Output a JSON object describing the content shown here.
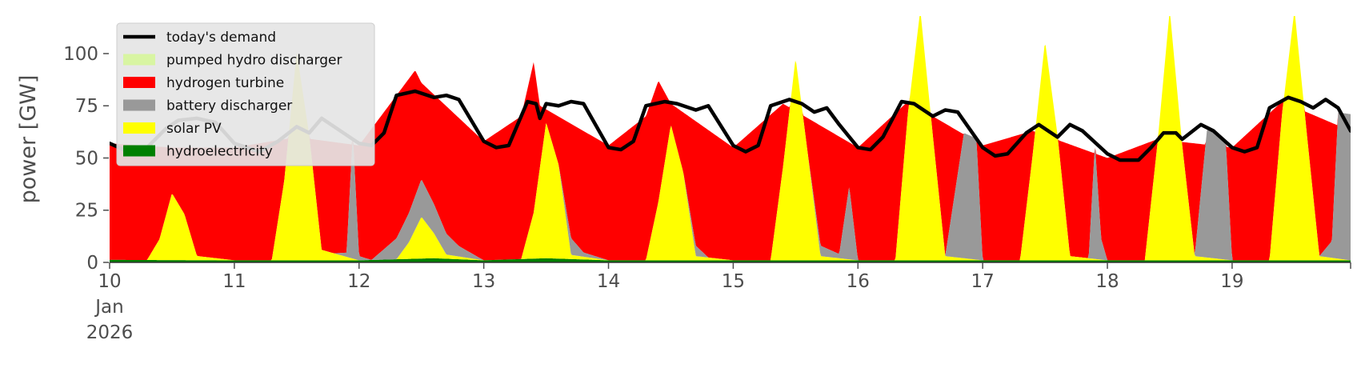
{
  "chart_data": {
    "type": "area",
    "xlabel": "",
    "ylabel": "power [GW]",
    "xlim": [
      10,
      19.95
    ],
    "ylim": [
      0,
      118
    ],
    "y_ticks": [
      0,
      25,
      50,
      75,
      100
    ],
    "x_ticks": [
      {
        "x": 10,
        "label": "10",
        "sublabels": [
          "Jan",
          "2026"
        ]
      },
      {
        "x": 11,
        "label": "11"
      },
      {
        "x": 12,
        "label": "12"
      },
      {
        "x": 13,
        "label": "13"
      },
      {
        "x": 14,
        "label": "14"
      },
      {
        "x": 15,
        "label": "15"
      },
      {
        "x": 16,
        "label": "16"
      },
      {
        "x": 17,
        "label": "17"
      },
      {
        "x": 18,
        "label": "18"
      },
      {
        "x": 19,
        "label": "19"
      }
    ],
    "grid": false,
    "legend_position": "upper-left",
    "series": [
      {
        "name": "hydroelectricity",
        "type": "area",
        "color": "#008000",
        "values": [
          [
            10,
            1.2
          ],
          [
            11,
            1.0
          ],
          [
            12,
            1.0
          ],
          [
            12.6,
            2.0
          ],
          [
            13,
            1.0
          ],
          [
            13.5,
            2.0
          ],
          [
            14,
            1.0
          ],
          [
            15,
            1.0
          ],
          [
            16,
            1.0
          ],
          [
            17,
            1.0
          ],
          [
            18,
            1.0
          ],
          [
            19,
            1.0
          ],
          [
            19.95,
            1.0
          ]
        ]
      },
      {
        "name": "solar PV",
        "type": "area",
        "color": "#ffff00",
        "values": [
          [
            10,
            0
          ],
          [
            10.3,
            0
          ],
          [
            10.4,
            10
          ],
          [
            10.5,
            32
          ],
          [
            10.6,
            22
          ],
          [
            10.7,
            2
          ],
          [
            11,
            0
          ],
          [
            11.3,
            0
          ],
          [
            11.4,
            38
          ],
          [
            11.5,
            100
          ],
          [
            11.6,
            60
          ],
          [
            11.7,
            5
          ],
          [
            12,
            0
          ],
          [
            12.3,
            0
          ],
          [
            12.4,
            8
          ],
          [
            12.5,
            20
          ],
          [
            12.6,
            12
          ],
          [
            12.7,
            2
          ],
          [
            13,
            0
          ],
          [
            13.3,
            0
          ],
          [
            13.4,
            22
          ],
          [
            13.5,
            65
          ],
          [
            13.6,
            45
          ],
          [
            13.7,
            2
          ],
          [
            14,
            0
          ],
          [
            14.3,
            0
          ],
          [
            14.4,
            28
          ],
          [
            14.5,
            65
          ],
          [
            14.6,
            42
          ],
          [
            14.7,
            2
          ],
          [
            15,
            0
          ],
          [
            15.3,
            0
          ],
          [
            15.4,
            45
          ],
          [
            15.5,
            97
          ],
          [
            15.6,
            50
          ],
          [
            15.7,
            2
          ],
          [
            16,
            0
          ],
          [
            16.3,
            0
          ],
          [
            16.4,
            70
          ],
          [
            16.5,
            120
          ],
          [
            16.6,
            60
          ],
          [
            16.7,
            2
          ],
          [
            17,
            0
          ],
          [
            17.3,
            0
          ],
          [
            17.4,
            50
          ],
          [
            17.5,
            105
          ],
          [
            17.6,
            60
          ],
          [
            17.7,
            2
          ],
          [
            18,
            0
          ],
          [
            18.3,
            0
          ],
          [
            18.4,
            55
          ],
          [
            18.5,
            120
          ],
          [
            18.6,
            55
          ],
          [
            18.7,
            2
          ],
          [
            19,
            0
          ],
          [
            19.3,
            0
          ],
          [
            19.4,
            70
          ],
          [
            19.5,
            120
          ],
          [
            19.6,
            60
          ],
          [
            19.7,
            2
          ],
          [
            19.95,
            0
          ]
        ]
      },
      {
        "name": "battery discharger",
        "type": "area",
        "color": "#999999",
        "values": [
          [
            10,
            0
          ],
          [
            10.7,
            0
          ],
          [
            11.8,
            0
          ],
          [
            11.9,
            2
          ],
          [
            11.95,
            60
          ],
          [
            12,
            2
          ],
          [
            12.1,
            0
          ],
          [
            12.3,
            10
          ],
          [
            12.5,
            18
          ],
          [
            12.7,
            10
          ],
          [
            12.8,
            5
          ],
          [
            13,
            0
          ],
          [
            13.6,
            0
          ],
          [
            13.7,
            8
          ],
          [
            13.8,
            2
          ],
          [
            14,
            0
          ],
          [
            14.6,
            0
          ],
          [
            14.7,
            5
          ],
          [
            14.8,
            0
          ],
          [
            15,
            0
          ],
          [
            15.6,
            0
          ],
          [
            15.7,
            5
          ],
          [
            15.85,
            2
          ],
          [
            15.93,
            35
          ],
          [
            16,
            0
          ],
          [
            16.7,
            0
          ],
          [
            16.85,
            60
          ],
          [
            16.95,
            58
          ],
          [
            17,
            0
          ],
          [
            17.85,
            0
          ],
          [
            17.9,
            55
          ],
          [
            17.95,
            10
          ],
          [
            18,
            0
          ],
          [
            18.7,
            0
          ],
          [
            18.8,
            62
          ],
          [
            18.95,
            56
          ],
          [
            19,
            0
          ],
          [
            19.7,
            0
          ],
          [
            19.8,
            8
          ],
          [
            19.85,
            70
          ],
          [
            19.95,
            70
          ]
        ]
      },
      {
        "name": "hydrogen turbine",
        "type": "area",
        "color": "#ff0000",
        "values": [
          [
            10,
            57
          ],
          [
            10.5,
            55
          ],
          [
            11,
            55
          ],
          [
            11.5,
            60
          ],
          [
            12,
            56
          ],
          [
            12.4,
            88
          ],
          [
            12.45,
            92
          ],
          [
            12.5,
            86
          ],
          [
            13,
            58
          ],
          [
            13.3,
            70
          ],
          [
            13.4,
            96
          ],
          [
            13.45,
            75
          ],
          [
            14,
            56
          ],
          [
            14.3,
            70
          ],
          [
            14.4,
            87
          ],
          [
            14.5,
            76
          ],
          [
            15,
            55
          ],
          [
            15.4,
            76
          ],
          [
            16,
            55
          ],
          [
            16.4,
            77
          ],
          [
            17,
            56
          ],
          [
            17.4,
            63
          ],
          [
            18,
            50
          ],
          [
            18.4,
            59
          ],
          [
            19,
            55
          ],
          [
            19.4,
            77
          ],
          [
            19.95,
            63
          ]
        ]
      },
      {
        "name": "pumped hydro discharger",
        "type": "area",
        "color": "#d8f5a2",
        "values": [
          [
            10,
            0
          ],
          [
            19.95,
            0
          ]
        ]
      },
      {
        "name": "today's demand",
        "type": "line",
        "color": "#000000",
        "values": [
          [
            10,
            57
          ],
          [
            10.15,
            53
          ],
          [
            10.3,
            55
          ],
          [
            10.45,
            64
          ],
          [
            10.55,
            68
          ],
          [
            10.7,
            69
          ],
          [
            10.85,
            67
          ],
          [
            11,
            57
          ],
          [
            11.2,
            53
          ],
          [
            11.35,
            58
          ],
          [
            11.5,
            65
          ],
          [
            11.6,
            62
          ],
          [
            11.7,
            69
          ],
          [
            11.85,
            63
          ],
          [
            12,
            57
          ],
          [
            12.1,
            56
          ],
          [
            12.2,
            62
          ],
          [
            12.3,
            80
          ],
          [
            12.45,
            82
          ],
          [
            12.6,
            79
          ],
          [
            12.7,
            80
          ],
          [
            12.8,
            78
          ],
          [
            13,
            58
          ],
          [
            13.1,
            55
          ],
          [
            13.2,
            56
          ],
          [
            13.35,
            77
          ],
          [
            13.42,
            76
          ],
          [
            13.45,
            69
          ],
          [
            13.5,
            76
          ],
          [
            13.6,
            75
          ],
          [
            13.7,
            77
          ],
          [
            13.8,
            76
          ],
          [
            14,
            55
          ],
          [
            14.1,
            54
          ],
          [
            14.2,
            58
          ],
          [
            14.3,
            75
          ],
          [
            14.45,
            77
          ],
          [
            14.55,
            76
          ],
          [
            14.7,
            73
          ],
          [
            14.8,
            75
          ],
          [
            15,
            56
          ],
          [
            15.1,
            53
          ],
          [
            15.2,
            56
          ],
          [
            15.3,
            75
          ],
          [
            15.45,
            78
          ],
          [
            15.55,
            76
          ],
          [
            15.65,
            72
          ],
          [
            15.75,
            74
          ],
          [
            15.85,
            66
          ],
          [
            16,
            55
          ],
          [
            16.1,
            54
          ],
          [
            16.2,
            60
          ],
          [
            16.35,
            77
          ],
          [
            16.45,
            76
          ],
          [
            16.6,
            70
          ],
          [
            16.7,
            73
          ],
          [
            16.8,
            72
          ],
          [
            17,
            55
          ],
          [
            17.1,
            51
          ],
          [
            17.2,
            52
          ],
          [
            17.35,
            62
          ],
          [
            17.45,
            66
          ],
          [
            17.6,
            60
          ],
          [
            17.7,
            66
          ],
          [
            17.8,
            63
          ],
          [
            18,
            52
          ],
          [
            18.1,
            49
          ],
          [
            18.25,
            49
          ],
          [
            18.35,
            55
          ],
          [
            18.45,
            62
          ],
          [
            18.55,
            62
          ],
          [
            18.6,
            59
          ],
          [
            18.75,
            66
          ],
          [
            18.85,
            63
          ],
          [
            19,
            55
          ],
          [
            19.1,
            53
          ],
          [
            19.2,
            55
          ],
          [
            19.3,
            74
          ],
          [
            19.45,
            79
          ],
          [
            19.55,
            77
          ],
          [
            19.65,
            74
          ],
          [
            19.75,
            78
          ],
          [
            19.85,
            74
          ],
          [
            19.95,
            63
          ]
        ]
      }
    ],
    "legend_order": [
      "today's demand",
      "pumped hydro discharger",
      "hydrogen turbine",
      "battery discharger",
      "solar PV",
      "hydroelectricity"
    ]
  }
}
